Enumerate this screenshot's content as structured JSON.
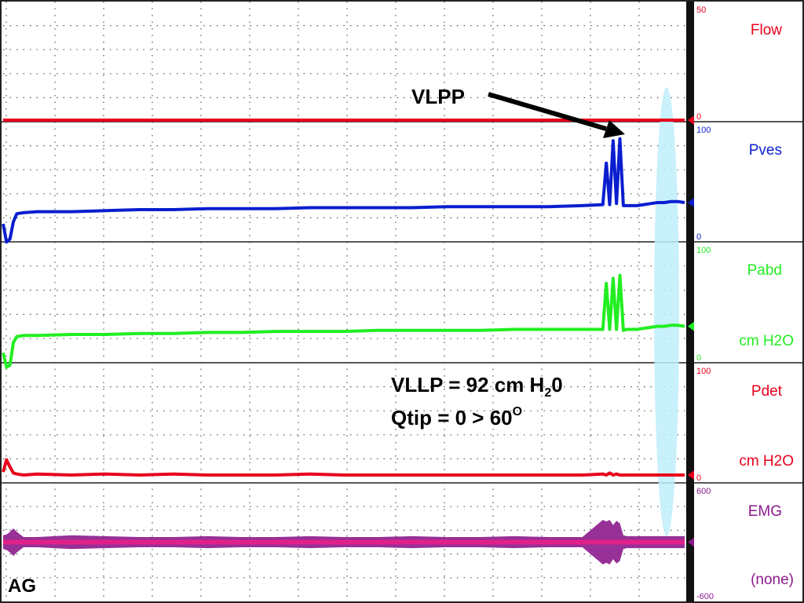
{
  "chart_data": {
    "type": "line",
    "title": "",
    "grid": true,
    "x": [
      0,
      0.5,
      1,
      1.5,
      2,
      3,
      5,
      10,
      15,
      20,
      25,
      30,
      35,
      40,
      45,
      50,
      55,
      60,
      65,
      70,
      75,
      80,
      85,
      88,
      88.5,
      89,
      89.5,
      90,
      90.5,
      91,
      91.5,
      92,
      92.5,
      93,
      94,
      95,
      96,
      97,
      98,
      99,
      100
    ],
    "channels": [
      {
        "name": "Flow",
        "label": "Flow",
        "unit": "",
        "color": "#e8001c",
        "scale_max": "50",
        "scale_min": "0",
        "ylim": [
          0,
          50
        ],
        "values": [
          0,
          0,
          0,
          0,
          0,
          0,
          0,
          0,
          0,
          0,
          0,
          0,
          0,
          0,
          0,
          0,
          0,
          0,
          0,
          0,
          0,
          0,
          0,
          0,
          0,
          0,
          0,
          0,
          0,
          0,
          0,
          0,
          0,
          0,
          0,
          0,
          0,
          0,
          0,
          0,
          0
        ]
      },
      {
        "name": "Pves",
        "label": "Pves",
        "unit": "",
        "color": "#0a1ecf",
        "scale_max": "100",
        "scale_min": "0",
        "ylim": [
          0,
          100
        ],
        "values": [
          10,
          -8,
          -5,
          12,
          20,
          21,
          22,
          22,
          23,
          24,
          24,
          25,
          25,
          25,
          26,
          26,
          26,
          26,
          27,
          27,
          27,
          27,
          28,
          29,
          70,
          29,
          92,
          30,
          94,
          28,
          28,
          28,
          28,
          28,
          29,
          30,
          31,
          31,
          32,
          32,
          31
        ]
      },
      {
        "name": "Pabd",
        "label": "Pabd",
        "unit": "cm H2O",
        "color": "#22ee22",
        "scale_max": "100",
        "scale_min": "0",
        "ylim": [
          0,
          100
        ],
        "values": [
          2,
          -12,
          -10,
          12,
          18,
          19,
          19,
          20,
          20,
          21,
          21,
          22,
          22,
          23,
          23,
          23,
          24,
          24,
          24,
          24,
          25,
          25,
          25,
          25,
          70,
          25,
          75,
          25,
          78,
          24,
          25,
          25,
          25,
          25,
          26,
          27,
          28,
          28,
          29,
          29,
          28
        ]
      },
      {
        "name": "Pdet",
        "label": "Pdet",
        "unit": "cm H2O",
        "color": "#e8001c",
        "scale_max": "100",
        "scale_min": "0",
        "ylim": [
          0,
          100
        ],
        "values": [
          3,
          15,
          8,
          2,
          1,
          0,
          1,
          0,
          1,
          0,
          1,
          0,
          0,
          0,
          1,
          0,
          0,
          0,
          0,
          0,
          0,
          0,
          0,
          1,
          0,
          2,
          0,
          1,
          0,
          0,
          0,
          0,
          0,
          0,
          0,
          0,
          0,
          0,
          0,
          0,
          0
        ]
      },
      {
        "name": "EMG",
        "label": "EMG",
        "unit": "(none)",
        "color": "#8c1a8c",
        "scale_max": "600",
        "scale_min": "-600",
        "ylim": [
          -600,
          600
        ],
        "values": [
          0,
          0,
          0,
          0,
          0,
          0,
          0,
          0,
          0,
          0,
          0,
          0,
          0,
          0,
          0,
          0,
          0,
          0,
          0,
          0,
          0,
          0,
          0,
          0,
          0,
          0,
          0,
          0,
          0,
          0,
          0,
          0,
          0,
          0,
          0,
          0,
          0,
          0,
          0,
          0,
          0
        ],
        "envelope": [
          80,
          90,
          120,
          160,
          120,
          60,
          60,
          80,
          70,
          60,
          60,
          70,
          60,
          60,
          70,
          60,
          60,
          70,
          60,
          60,
          70,
          60,
          60,
          260,
          240,
          260,
          200,
          250,
          220,
          80,
          70,
          70,
          70,
          70,
          70,
          70,
          70,
          70,
          70,
          70,
          70
        ]
      }
    ],
    "annotations": {
      "arrow_label": "VLPP",
      "result_line1_text": "VLLP = 92 cm H",
      "result_line1_sub": "2",
      "result_line1_end": "0",
      "result_line2_text": "Qtip = 0 > 60",
      "result_line2_sup": "O",
      "corner_label": "AG"
    },
    "highlight_color": "#bfeffc",
    "legend": "right"
  }
}
